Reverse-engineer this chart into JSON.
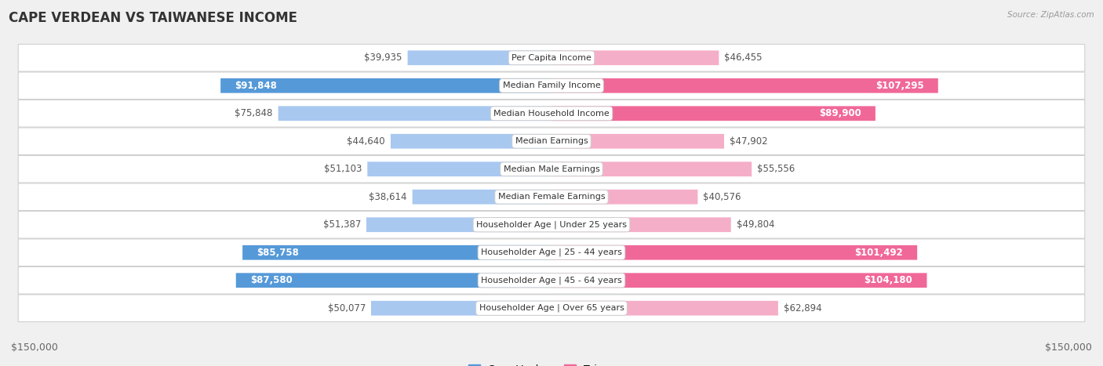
{
  "title": "CAPE VERDEAN VS TAIWANESE INCOME",
  "source": "Source: ZipAtlas.com",
  "categories": [
    "Per Capita Income",
    "Median Family Income",
    "Median Household Income",
    "Median Earnings",
    "Median Male Earnings",
    "Median Female Earnings",
    "Householder Age | Under 25 years",
    "Householder Age | 25 - 44 years",
    "Householder Age | 45 - 64 years",
    "Householder Age | Over 65 years"
  ],
  "cape_verdean": [
    39935,
    91848,
    75848,
    44640,
    51103,
    38614,
    51387,
    85758,
    87580,
    50077
  ],
  "taiwanese": [
    46455,
    107295,
    89900,
    47902,
    55556,
    40576,
    49804,
    101492,
    104180,
    62894
  ],
  "cape_verdean_labels": [
    "$39,935",
    "$91,848",
    "$75,848",
    "$44,640",
    "$51,103",
    "$38,614",
    "$51,387",
    "$85,758",
    "$87,580",
    "$50,077"
  ],
  "taiwanese_labels": [
    "$46,455",
    "$107,295",
    "$89,900",
    "$47,902",
    "$55,556",
    "$40,576",
    "$49,804",
    "$101,492",
    "$104,180",
    "$62,894"
  ],
  "max_value": 150000,
  "cv_color_light": "#a8c8f0",
  "cv_color_dark": "#5599d8",
  "tw_color_light": "#f5aec8",
  "tw_color_dark": "#f06898",
  "highlight_cv": [
    1,
    7,
    8
  ],
  "highlight_tw": [
    1,
    2,
    7,
    8
  ],
  "background_color": "#f0f0f0",
  "row_bg_light": "#f8f8f8",
  "row_bg_white": "#ffffff",
  "label_fontsize": 8.5,
  "title_fontsize": 12,
  "axis_label_fontsize": 9,
  "bar_height": 0.52
}
